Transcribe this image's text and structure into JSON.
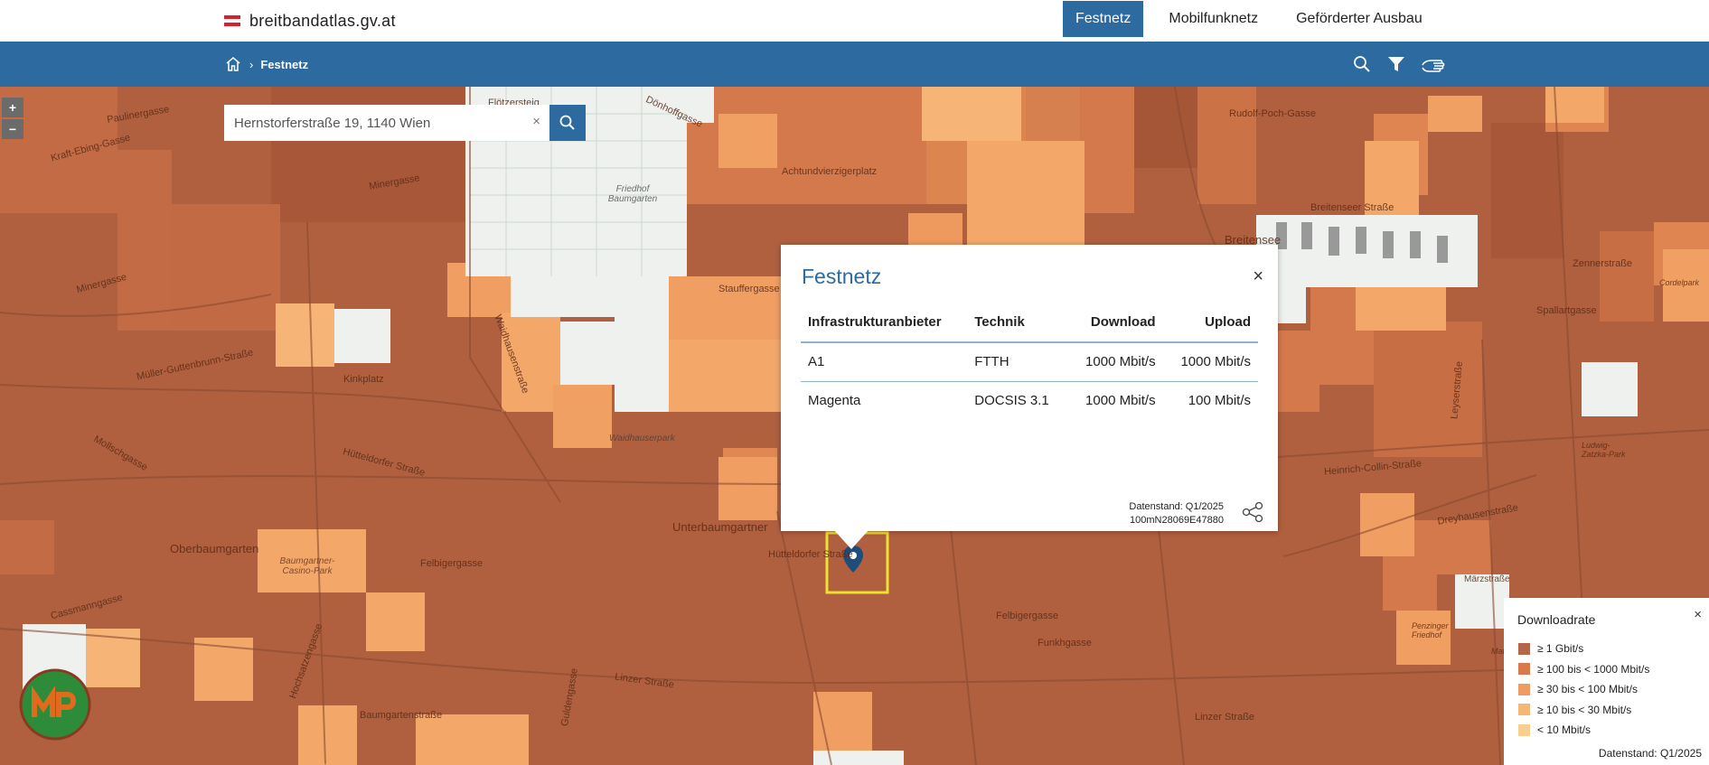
{
  "header": {
    "brand": "breitbandatlas.gv.at",
    "nav": [
      {
        "label": "Festnetz",
        "active": true
      },
      {
        "label": "Mobilfunknetz",
        "active": false
      },
      {
        "label": "Geförderter Ausbau",
        "active": false
      }
    ]
  },
  "breadcrumb": {
    "current": "Festnetz"
  },
  "tools": [
    "search-icon",
    "filter-icon",
    "hand-pointer-icon"
  ],
  "map": {
    "zoom_in": "+",
    "zoom_out": "−",
    "search_value": "Hernstorferstraße 19, 1140 Wien",
    "clear_symbol": "×",
    "streets": [
      {
        "name": "Flötzersteig"
      },
      {
        "name": "Dönhoffgasse"
      },
      {
        "name": "Paulinergasse"
      },
      {
        "name": "Kraft-Ebing-Gasse"
      },
      {
        "name": "Minergasse"
      },
      {
        "name": "Friedhof Baumgarten"
      },
      {
        "name": "Achtundvierzigerplatz"
      },
      {
        "name": "Rudolf-Poch-Gasse"
      },
      {
        "name": "Breitenseer Straße"
      },
      {
        "name": "Breitensee"
      },
      {
        "name": "Zennerstraße"
      },
      {
        "name": "Spallartgasse"
      },
      {
        "name": "Minergasse"
      },
      {
        "name": "Stauffergasse"
      },
      {
        "name": "Müller-Guttenbrunn-Straße"
      },
      {
        "name": "Kinkplatz"
      },
      {
        "name": "Waidhausenstraße"
      },
      {
        "name": "Waidhauserpark"
      },
      {
        "name": "Hütteldorfer Straße"
      },
      {
        "name": "Mollschgasse"
      },
      {
        "name": "Oberbaumgarten"
      },
      {
        "name": "Baumgartner-Casino-Park"
      },
      {
        "name": "Felbigergasse"
      },
      {
        "name": "Linzer Straße"
      },
      {
        "name": "Hochsatzengasse"
      },
      {
        "name": "Cassmanngasse"
      },
      {
        "name": "Heinrich-Collin-Straße"
      },
      {
        "name": "Dreyhausenstraße"
      },
      {
        "name": "Märzstraße"
      },
      {
        "name": "Penzinger Friedhof"
      },
      {
        "name": "Funkhgasse"
      },
      {
        "name": "Guldengasse"
      },
      {
        "name": "Baumgartenstraße"
      },
      {
        "name": "Unterbaumgartner"
      },
      {
        "name": "Hütteldorfer Straße"
      },
      {
        "name": "Felbigergasse"
      },
      {
        "name": "Linzer Straße"
      },
      {
        "name": "Leyserstraße"
      },
      {
        "name": "Matznerpark"
      },
      {
        "name": "Cordelpark"
      },
      {
        "name": "Ludwig-Zatzka-Park"
      }
    ]
  },
  "popup": {
    "title": "Festnetz",
    "close": "×",
    "columns": [
      "Infrastrukturanbieter",
      "Technik",
      "Download",
      "Upload"
    ],
    "rows": [
      {
        "provider": "A1",
        "technology": "FTTH",
        "download": "1000 Mbit/s",
        "upload": "1000 Mbit/s"
      },
      {
        "provider": "Magenta",
        "technology": "DOCSIS 3.1",
        "download": "1000 Mbit/s",
        "upload": "100 Mbit/s"
      }
    ],
    "data_status": "Datenstand: Q1/2025",
    "cell_id": "100mN28069E47880"
  },
  "legend": {
    "title": "Downloadrate",
    "close": "×",
    "items": [
      {
        "label": "≥ 1 Gbit/s",
        "color": "#b4664a"
      },
      {
        "label": "≥ 100 bis < 1000 Mbit/s",
        "color": "#d9794e"
      },
      {
        "label": "≥ 30 bis < 100 Mbit/s",
        "color": "#ef9b62"
      },
      {
        "label": "≥ 10 bis < 30 Mbit/s",
        "color": "#f5b774"
      },
      {
        "label": "< 10 Mbit/s",
        "color": "#f7d08f"
      }
    ],
    "data_status": "Datenstand: Q1/2025"
  },
  "colors": {
    "brand_blue": "#2d6a9f",
    "map_base": "#b0603f",
    "marker_highlight": "#f0e030"
  }
}
